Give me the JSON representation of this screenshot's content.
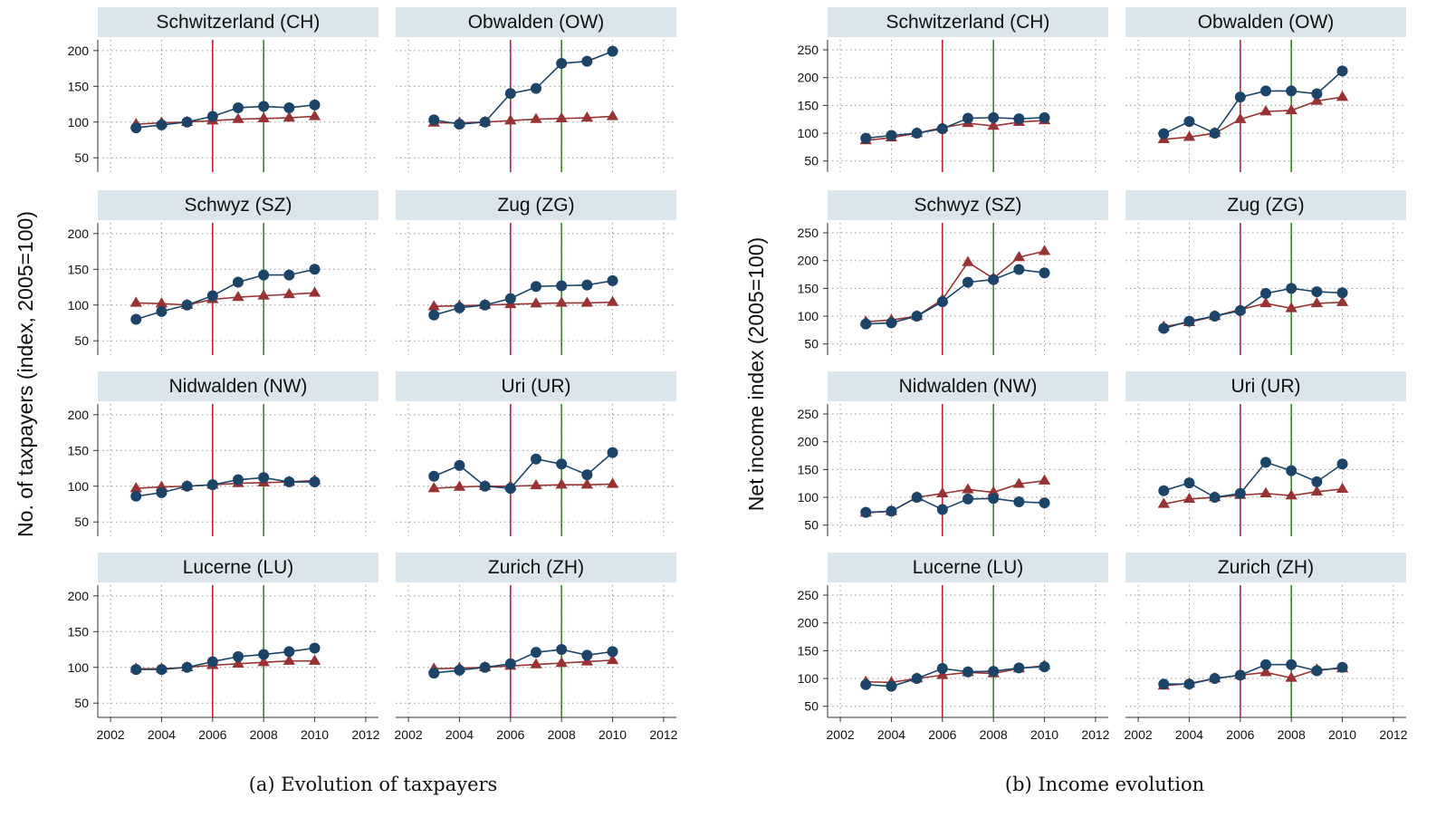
{
  "chart_data": [
    {
      "type": "line",
      "caption": "(a) Evolution of taxpayers",
      "ylabel": "No. of taxpayers (index, 2005=100)",
      "xlim": [
        2001.5,
        2012.5
      ],
      "ylim": [
        30,
        215
      ],
      "xticks": [
        2002,
        2004,
        2006,
        2008,
        2010,
        2012
      ],
      "yticks": [
        50,
        100,
        150,
        200
      ],
      "vlines": [
        {
          "x": 2006,
          "color": "#c0213b"
        },
        {
          "x": 2008,
          "color": "#2e8b1f"
        }
      ],
      "x": [
        2003,
        2004,
        2005,
        2006,
        2007,
        2008,
        2009,
        2010
      ],
      "panels": [
        {
          "title": "Schwitzerland (CH)",
          "series": [
            {
              "marker": "circle",
              "color": "#1b4468",
              "values": [
                92,
                96,
                100,
                108,
                120,
                122,
                120,
                124
              ]
            },
            {
              "marker": "triangle",
              "color": "#993333",
              "values": [
                97,
                99,
                100,
                102,
                104,
                105,
                106,
                108
              ]
            }
          ]
        },
        {
          "title": "Obwalden (OW)",
          "series": [
            {
              "marker": "circle",
              "color": "#1b4468",
              "values": [
                103,
                97,
                100,
                140,
                147,
                182,
                185,
                199
              ]
            },
            {
              "marker": "triangle",
              "color": "#993333",
              "values": [
                99,
                99,
                100,
                102,
                104,
                105,
                106,
                108
              ]
            }
          ]
        },
        {
          "title": "Schwyz (SZ)",
          "series": [
            {
              "marker": "circle",
              "color": "#1b4468",
              "values": [
                80,
                91,
                100,
                113,
                132,
                142,
                142,
                150
              ]
            },
            {
              "marker": "triangle",
              "color": "#993333",
              "values": [
                103,
                102,
                100,
                108,
                111,
                113,
                115,
                117
              ]
            }
          ]
        },
        {
          "title": "Zug (ZG)",
          "series": [
            {
              "marker": "circle",
              "color": "#1b4468",
              "values": [
                86,
                96,
                100,
                109,
                126,
                127,
                128,
                134
              ]
            },
            {
              "marker": "triangle",
              "color": "#993333",
              "values": [
                98,
                99,
                100,
                101,
                102,
                103,
                103,
                104
              ]
            }
          ]
        },
        {
          "title": "Nidwalden (NW)",
          "series": [
            {
              "marker": "circle",
              "color": "#1b4468",
              "values": [
                86,
                91,
                100,
                102,
                109,
                112,
                106,
                106
              ]
            },
            {
              "marker": "triangle",
              "color": "#993333",
              "values": [
                97,
                99,
                100,
                102,
                104,
                105,
                106,
                108
              ]
            }
          ]
        },
        {
          "title": "Uri (UR)",
          "series": [
            {
              "marker": "circle",
              "color": "#1b4468",
              "values": [
                114,
                129,
                100,
                97,
                138,
                131,
                116,
                147
              ]
            },
            {
              "marker": "triangle",
              "color": "#993333",
              "values": [
                97,
                99,
                100,
                100,
                101,
                102,
                102,
                103
              ]
            }
          ]
        },
        {
          "title": "Lucerne (LU)",
          "series": [
            {
              "marker": "circle",
              "color": "#1b4468",
              "values": [
                97,
                97,
                100,
                108,
                115,
                118,
                122,
                127
              ]
            },
            {
              "marker": "triangle",
              "color": "#993333",
              "values": [
                98,
                98,
                100,
                103,
                105,
                107,
                109,
                109
              ]
            }
          ]
        },
        {
          "title": "Zurich (ZH)",
          "series": [
            {
              "marker": "circle",
              "color": "#1b4468",
              "values": [
                92,
                96,
                100,
                105,
                121,
                125,
                117,
                122
              ]
            },
            {
              "marker": "triangle",
              "color": "#993333",
              "values": [
                98,
                99,
                100,
                102,
                104,
                106,
                108,
                110
              ]
            }
          ]
        }
      ]
    },
    {
      "type": "line",
      "caption": "(b) Income evolution",
      "ylabel": "Net income index (2005=100)",
      "xlim": [
        2001.5,
        2012.5
      ],
      "ylim": [
        30,
        268
      ],
      "xticks": [
        2002,
        2004,
        2006,
        2008,
        2010,
        2012
      ],
      "yticks": [
        50,
        100,
        150,
        200,
        250
      ],
      "vlines": [
        {
          "x": 2006,
          "color": "#c0213b"
        },
        {
          "x": 2008,
          "color": "#2e8b1f"
        }
      ],
      "x": [
        2003,
        2004,
        2005,
        2006,
        2007,
        2008,
        2009,
        2010
      ],
      "panels": [
        {
          "title": "Schwitzerland (CH)",
          "series": [
            {
              "marker": "circle",
              "color": "#1b4468",
              "values": [
                91,
                96,
                100,
                108,
                127,
                128,
                126,
                128
              ]
            },
            {
              "marker": "triangle",
              "color": "#993333",
              "values": [
                87,
                92,
                100,
                110,
                118,
                113,
                120,
                123
              ]
            }
          ]
        },
        {
          "title": "Obwalden (OW)",
          "series": [
            {
              "marker": "circle",
              "color": "#1b4468",
              "values": [
                99,
                121,
                100,
                165,
                176,
                176,
                171,
                212
              ]
            },
            {
              "marker": "triangle",
              "color": "#993333",
              "values": [
                89,
                93,
                100,
                125,
                139,
                141,
                158,
                165
              ]
            }
          ]
        },
        {
          "title": "Schwyz (SZ)",
          "series": [
            {
              "marker": "circle",
              "color": "#1b4468",
              "values": [
                86,
                88,
                100,
                126,
                161,
                166,
                184,
                178
              ]
            },
            {
              "marker": "triangle",
              "color": "#993333",
              "values": [
                90,
                93,
                100,
                130,
                197,
                168,
                206,
                217
              ]
            }
          ]
        },
        {
          "title": "Zug (ZG)",
          "series": [
            {
              "marker": "circle",
              "color": "#1b4468",
              "values": [
                78,
                91,
                100,
                110,
                141,
                150,
                144,
                142
              ]
            },
            {
              "marker": "triangle",
              "color": "#993333",
              "values": [
                81,
                89,
                100,
                112,
                123,
                114,
                123,
                125
              ]
            }
          ]
        },
        {
          "title": "Nidwalden (NW)",
          "series": [
            {
              "marker": "circle",
              "color": "#1b4468",
              "values": [
                73,
                75,
                100,
                78,
                97,
                98,
                92,
                90
              ]
            },
            {
              "marker": "triangle",
              "color": "#993333",
              "values": [
                72,
                75,
                100,
                107,
                114,
                109,
                124,
                130
              ]
            }
          ]
        },
        {
          "title": "Uri (UR)",
          "series": [
            {
              "marker": "circle",
              "color": "#1b4468",
              "values": [
                112,
                126,
                100,
                107,
                163,
                148,
                128,
                160
              ]
            },
            {
              "marker": "triangle",
              "color": "#993333",
              "values": [
                88,
                97,
                100,
                104,
                107,
                103,
                110,
                115
              ]
            }
          ]
        },
        {
          "title": "Lucerne (LU)",
          "series": [
            {
              "marker": "circle",
              "color": "#1b4468",
              "values": [
                89,
                86,
                100,
                118,
                112,
                113,
                119,
                121
              ]
            },
            {
              "marker": "triangle",
              "color": "#993333",
              "values": [
                94,
                93,
                100,
                106,
                111,
                109,
                118,
                123
              ]
            }
          ]
        },
        {
          "title": "Zurich (ZH)",
          "series": [
            {
              "marker": "circle",
              "color": "#1b4468",
              "values": [
                90,
                90,
                100,
                106,
                125,
                125,
                114,
                120
              ]
            },
            {
              "marker": "triangle",
              "color": "#993333",
              "values": [
                87,
                91,
                100,
                106,
                111,
                101,
                116,
                118
              ]
            }
          ]
        }
      ]
    }
  ]
}
